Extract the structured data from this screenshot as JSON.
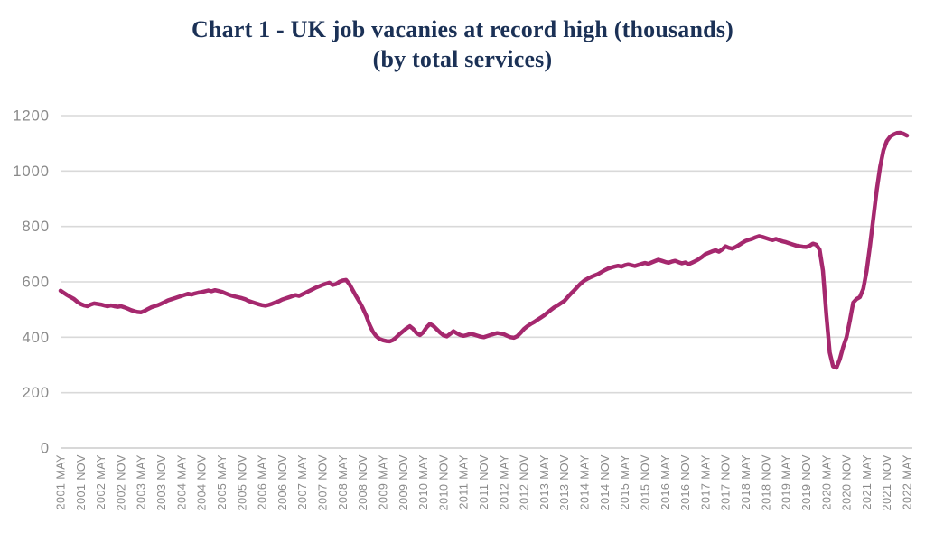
{
  "page": {
    "background": "#ffffff"
  },
  "chart_data": {
    "type": "line",
    "title": "Chart 1 - UK job vacanies at record high (thousands)",
    "subtitle": "(by total services)",
    "title_color": "#1b3156",
    "line_color": "#a5286e",
    "line_width": 4.5,
    "grid_color": "#d9d9d9",
    "baseline_color": "#cccccc",
    "axis_label_color": "#8a8a8a",
    "grid": "horizontal-only",
    "legend": "none",
    "ylim": [
      0,
      1200
    ],
    "y_ticks": [
      0,
      200,
      400,
      600,
      800,
      1000,
      1200
    ],
    "x_tick_every_n_points": 6,
    "x_tick_labels": [
      "2001 MAY",
      "2001 NOV",
      "2002 MAY",
      "2002 NOV",
      "2003 MAY",
      "2003 NOV",
      "2004 MAY",
      "2004 NOV",
      "2005 MAY",
      "2005 NOV",
      "2006 MAY",
      "2006 NOV",
      "2007 MAY",
      "2007 NOV",
      "2008 MAY",
      "2008 NOV",
      "2009 MAY",
      "2009 NOV",
      "2010 MAY",
      "2010 NOV",
      "2011 MAY",
      "2011 NOV",
      "2012 MAY",
      "2012 NOV",
      "2013 MAY",
      "2013 NOV",
      "2014 MAY",
      "2014 NOV",
      "2015 MAY",
      "2015 NOV",
      "2016 MAY",
      "2016 NOV",
      "2017 MAY",
      "2017 NOV",
      "2018 MAY",
      "2018 NOV",
      "2019 MAY",
      "2019 NOV",
      "2020 MAY",
      "2020 NOV",
      "2021 MAY",
      "2021 NOV",
      "2022 MAY"
    ],
    "series": [
      {
        "name": "UK job vacancies, total services (thousands)",
        "start": "2001 MAY",
        "end": "2022 MAY",
        "frequency": "monthly",
        "values": [
          568,
          560,
          552,
          545,
          538,
          528,
          520,
          515,
          512,
          518,
          522,
          520,
          518,
          515,
          512,
          515,
          512,
          510,
          512,
          508,
          503,
          498,
          494,
          491,
          490,
          495,
          502,
          508,
          512,
          516,
          521,
          527,
          533,
          537,
          541,
          545,
          549,
          553,
          557,
          554,
          558,
          561,
          563,
          566,
          569,
          566,
          570,
          567,
          564,
          559,
          554,
          550,
          547,
          544,
          541,
          537,
          531,
          527,
          523,
          519,
          516,
          514,
          517,
          521,
          526,
          530,
          536,
          540,
          544,
          548,
          552,
          549,
          555,
          561,
          567,
          573,
          579,
          584,
          589,
          593,
          597,
          589,
          592,
          600,
          605,
          607,
          592,
          570,
          548,
          528,
          505,
          478,
          445,
          420,
          404,
          394,
          389,
          386,
          385,
          390,
          400,
          412,
          422,
          432,
          440,
          430,
          415,
          408,
          418,
          436,
          448,
          441,
          429,
          417,
          407,
          403,
          412,
          422,
          414,
          408,
          405,
          408,
          412,
          410,
          406,
          402,
          400,
          404,
          408,
          412,
          415,
          413,
          411,
          405,
          400,
          398,
          404,
          416,
          430,
          440,
          448,
          455,
          463,
          471,
          479,
          489,
          499,
          508,
          515,
          523,
          531,
          545,
          558,
          570,
          583,
          595,
          605,
          612,
          618,
          623,
          628,
          635,
          642,
          648,
          652,
          655,
          658,
          655,
          660,
          663,
          660,
          657,
          661,
          665,
          668,
          665,
          670,
          675,
          680,
          676,
          672,
          669,
          673,
          676,
          671,
          667,
          670,
          664,
          669,
          675,
          682,
          690,
          700,
          705,
          710,
          714,
          709,
          717,
          728,
          723,
          720,
          726,
          733,
          741,
          748,
          752,
          756,
          761,
          765,
          762,
          758,
          754,
          751,
          755,
          750,
          746,
          743,
          739,
          735,
          731,
          729,
          727,
          726,
          730,
          738,
          734,
          716,
          640,
          480,
          345,
          295,
          290,
          320,
          365,
          400,
          460,
          525,
          538,
          545,
          575,
          640,
          730,
          830,
          930,
          1015,
          1075,
          1108,
          1124,
          1132,
          1137,
          1138,
          1134,
          1128
        ]
      }
    ]
  }
}
